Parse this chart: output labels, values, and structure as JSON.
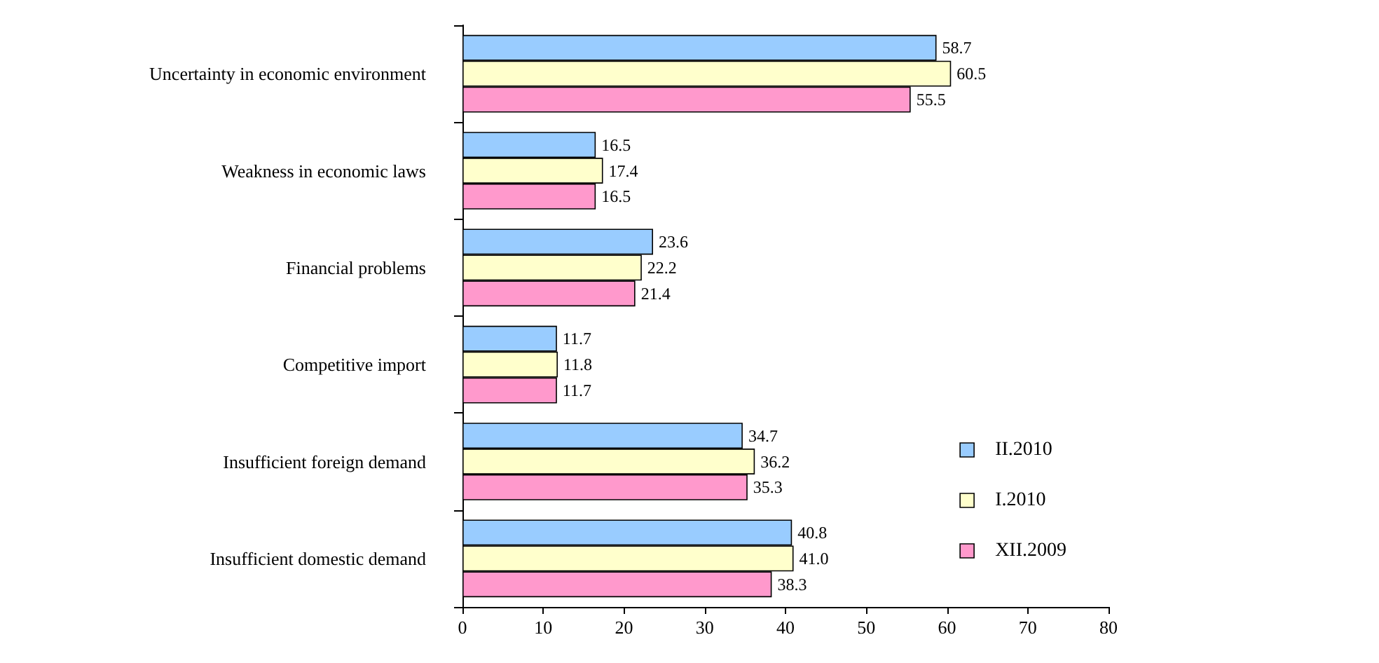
{
  "chart_data": {
    "type": "bar",
    "orientation": "horizontal",
    "categories": [
      "Uncertainty in economic environment",
      "Weakness in economic laws",
      "Financial problems",
      "Competitive import",
      "Insufficient foreign demand",
      "Insufficient domestic demand"
    ],
    "series": [
      {
        "name": "II.2010",
        "color": "#99ccff",
        "values": [
          58.7,
          16.5,
          23.6,
          11.7,
          34.7,
          40.8
        ],
        "value_labels": [
          "58.7",
          "16.5",
          "23.6",
          "11.7",
          "34.7",
          "40.8"
        ]
      },
      {
        "name": "I.2010",
        "color": "#ffffcc",
        "values": [
          60.5,
          17.4,
          22.2,
          11.8,
          36.2,
          41.0
        ],
        "value_labels": [
          "60.5",
          "17.4",
          "22.2",
          "11.8",
          "36.2",
          "41.0"
        ]
      },
      {
        "name": "XII.2009",
        "color": "#ff99cc",
        "values": [
          55.5,
          16.5,
          21.4,
          11.7,
          35.3,
          38.3
        ],
        "value_labels": [
          "55.5",
          "16.5",
          "21.4",
          "11.7",
          "35.3",
          "38.3"
        ]
      }
    ],
    "xlim": [
      0,
      80
    ],
    "xticks": [
      0,
      10,
      20,
      30,
      40,
      50,
      60,
      70,
      80
    ],
    "grid": false,
    "legend": "bottom right"
  }
}
